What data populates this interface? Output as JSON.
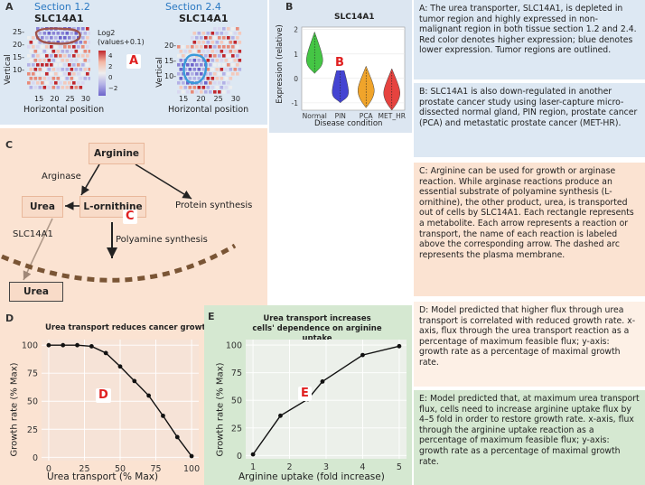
{
  "panelA": {
    "letter": "A",
    "badge": "A",
    "left": {
      "section": "Section 1.2",
      "gene": "SLC14A1",
      "ylabel": "Vertical",
      "xlabel": "Horizontal position",
      "yticks": [
        "25-",
        "20-",
        "15-",
        "10-"
      ],
      "xticks": [
        "15",
        "20",
        "25",
        "30"
      ]
    },
    "right": {
      "section": "Section 2.4",
      "gene": "SLC14A1",
      "ylabel": "Vertical",
      "xlabel": "Horizontal position",
      "yticks": [
        "20-",
        "15-",
        "10-"
      ],
      "xticks": [
        "15",
        "20",
        "25",
        "30"
      ]
    },
    "legend": {
      "title1": "Log2",
      "title2": "(values+0.1)",
      "ticks": [
        "4",
        "2",
        "0",
        "−2"
      ]
    },
    "colors": {
      "high": "#c0272d",
      "low": "#7b6fd0",
      "bg": "#dfeaf4",
      "tumor_left": "#a0524a",
      "tumor_right": "#3a9ad9"
    }
  },
  "panelB": {
    "letter": "B",
    "badge": "B",
    "chart_data": {
      "type": "violin",
      "title": "SLC14A1",
      "ylabel": "Expression (relative)",
      "xlabel": "Disease condition",
      "categories": [
        "Normal",
        "PIN",
        "PCA",
        "MET_HR"
      ],
      "yticks": [
        "2",
        "1",
        "0",
        "-1"
      ],
      "ylim": [
        -1.3,
        2.1
      ],
      "series": [
        {
          "name": "Normal",
          "color": "#3cc43c",
          "min": 0.2,
          "max": 1.9,
          "median": 0.75
        },
        {
          "name": "PIN",
          "color": "#3a3ad0",
          "min": -1.0,
          "max": 0.9,
          "median": -0.55
        },
        {
          "name": "PCA",
          "color": "#f0a020",
          "min": -1.2,
          "max": 0.5,
          "median": -0.5
        },
        {
          "name": "MET_HR",
          "color": "#e53935",
          "min": -1.3,
          "max": 0.4,
          "median": -0.6
        }
      ]
    }
  },
  "panelC": {
    "letter": "C",
    "badge": "C",
    "nodes": {
      "arginine": "Arginine",
      "urea": "Urea",
      "ornithine": "L-ornithine",
      "urea_out": "Urea"
    },
    "labels": {
      "arginase": "Arginase",
      "protein": "Protein synthesis",
      "polyamine": "Polyamine synthesis",
      "transporter": "SLC14A1"
    }
  },
  "panelD": {
    "letter": "D",
    "badge": "D",
    "chart_data": {
      "type": "line",
      "title": "Urea transport reduces cancer growth",
      "xlabel": "Urea transport (% Max)",
      "ylabel": "Growth rate (% Max)",
      "x": [
        0,
        10,
        20,
        30,
        40,
        50,
        60,
        70,
        80,
        90,
        100
      ],
      "y": [
        100,
        100,
        100,
        99,
        93,
        81,
        68,
        55,
        37,
        18,
        1
      ],
      "xlim": [
        -5,
        105
      ],
      "ylim": [
        -3,
        105
      ],
      "xticks": [
        0,
        25,
        50,
        75,
        100
      ],
      "yticks": [
        0,
        25,
        50,
        75,
        100
      ],
      "grid": true
    }
  },
  "panelE": {
    "letter": "E",
    "badge": "E",
    "chart_data": {
      "type": "line",
      "title": "Urea transport increases\ncells' dependence on arginine uptake",
      "xlabel": "Arginine uptake (fold increase)",
      "ylabel": "Growth rate (% Max)",
      "x": [
        1,
        1.75,
        2.5,
        2.9,
        4.0,
        5.0
      ],
      "y": [
        1,
        36,
        51,
        67,
        91,
        99
      ],
      "xlim": [
        0.8,
        5.2
      ],
      "ylim": [
        -3,
        105
      ],
      "xticks": [
        1,
        2,
        3,
        4,
        5
      ],
      "yticks": [
        0,
        25,
        50,
        75,
        100
      ],
      "grid": true
    }
  },
  "descriptions": {
    "A": "A: The urea transporter, SLC14A1, is depleted in tumor region and highly expressed in non-malignant region in both tissue section 1.2 and 2.4. Red color denotes higher expression; blue denotes lower expression. Tumor regions are outlined.",
    "B": "B: SLC14A1 is also down-regulated in another prostate cancer study using laser-capture micro-dissected normal gland, PIN region, prostate cancer (PCA) and metastatic prostate cancer (MET-HR).",
    "C": "C: Arginine can be used for growth or arginase reaction. While arginase reactions produce an essential substrate of polyamine synthesis (L-ornithine), the other product, urea, is transported out of cells by SLC14A1. Each rectangle represents a metabolite. Each arrow represents a reaction or transport, the name of each reaction is labeled above the corresponding arrow. The dashed arc represents the plasma membrane.",
    "D": "D: Model predicted that higher flux through urea transport is correlated with reduced growth rate. x-axis, flux through the urea transport reaction as a percentage of maximum feasible flux; y-axis: growth rate as a percentage of maximal growth rate.",
    "E": "E: Model predicted that, at maximum urea transport flux, cells need to increase arginine uptake flux by 4–5 fold in order to restore growth rate. x-axis, flux through the arginine uptake reaction as a percentage of maximum feasible flux; y-axis: growth rate as a percentage of maximal growth rate."
  }
}
